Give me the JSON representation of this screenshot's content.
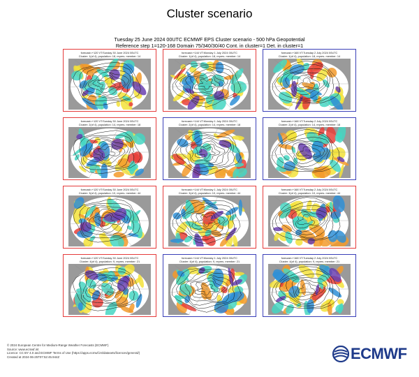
{
  "page": {
    "title": "Cluster scenario",
    "subtitle_line1": "Tuesday 25 June 2024 00UTC ECMWF EPS Cluster scenario - 500 hPa Geopotential",
    "subtitle_line2": "Reference step 1=120-168 Domain 75/340/30/40 Cont. in cluster=1 Det. in cluster=1"
  },
  "colors": {
    "red_frame": "#e53b3b",
    "blue_frame": "#3a3fb8",
    "brand": "#1e3a8a"
  },
  "panels": [
    {
      "frame": "red",
      "line1": "forecast=+120 VT:Sunday 30 June 2024 00UTC",
      "line2": "Cluster: 1(of 4), population: 18, repres. member: 14"
    },
    {
      "frame": "red",
      "line1": "forecast=+144 VT:Monday 1 July 2024 00UTC",
      "line2": "Cluster: 1(of 4), population: 18, repres. member: 14"
    },
    {
      "frame": "blue",
      "line1": "forecast=+168 VT:Tuesday 2 July 2024 00UTC",
      "line2": "Cluster: 1(of 4), population: 18, repres. member: 14"
    },
    {
      "frame": "red",
      "line1": "forecast=+120 VT:Sunday 30 June 2024 00UTC",
      "line2": "Cluster: 2(of 4), population: 14, repres. member: 18"
    },
    {
      "frame": "blue",
      "line1": "forecast=+144 VT:Monday 1 July 2024 00UTC",
      "line2": "Cluster: 2(of 4), population: 14, repres. member: 18"
    },
    {
      "frame": "blue",
      "line1": "forecast=+168 VT:Tuesday 2 July 2024 00UTC",
      "line2": "Cluster: 2(of 4), population: 14, repres. member: 18"
    },
    {
      "frame": "red",
      "line1": "forecast=+120 VT:Sunday 30 June 2024 00UTC",
      "line2": "Cluster: 3(of 4), population: 10, repres. member: 44"
    },
    {
      "frame": "red",
      "line1": "forecast=+144 VT:Monday 1 July 2024 00UTC",
      "line2": "Cluster: 3(of 4), population: 10, repres. member: 44"
    },
    {
      "frame": "red",
      "line1": "forecast=+168 VT:Tuesday 2 July 2024 00UTC",
      "line2": "Cluster: 3(of 4), population: 10, repres. member: 44"
    },
    {
      "frame": "red",
      "line1": "forecast=+120 VT:Sunday 30 June 2024 00UTC",
      "line2": "Cluster: 4(of 4), population: 9, repres. member: 21"
    },
    {
      "frame": "blue",
      "line1": "forecast=+144 VT:Monday 1 July 2024 00UTC",
      "line2": "Cluster: 4(of 4), population: 9, repres. member: 21"
    },
    {
      "frame": "blue",
      "line1": "forecast=+168 VT:Tuesday 2 July 2024 00UTC",
      "line2": "Cluster: 4(of 4), population: 9, repres. member: 21"
    }
  ],
  "footer": {
    "line1": "© 2024 European Centre for Medium-Range Weather Forecasts (ECMWF)",
    "line2": "Source: www.ecmwf.int",
    "line3": "Licence: CC BY 4.0 and ECMWF Terms of Use (https://apps.ecmwf.int/datasets/licences/general/)",
    "line4": "Created at 2024-06-25T07:52:45.944Z"
  },
  "logo": {
    "text": "ECMWF"
  }
}
